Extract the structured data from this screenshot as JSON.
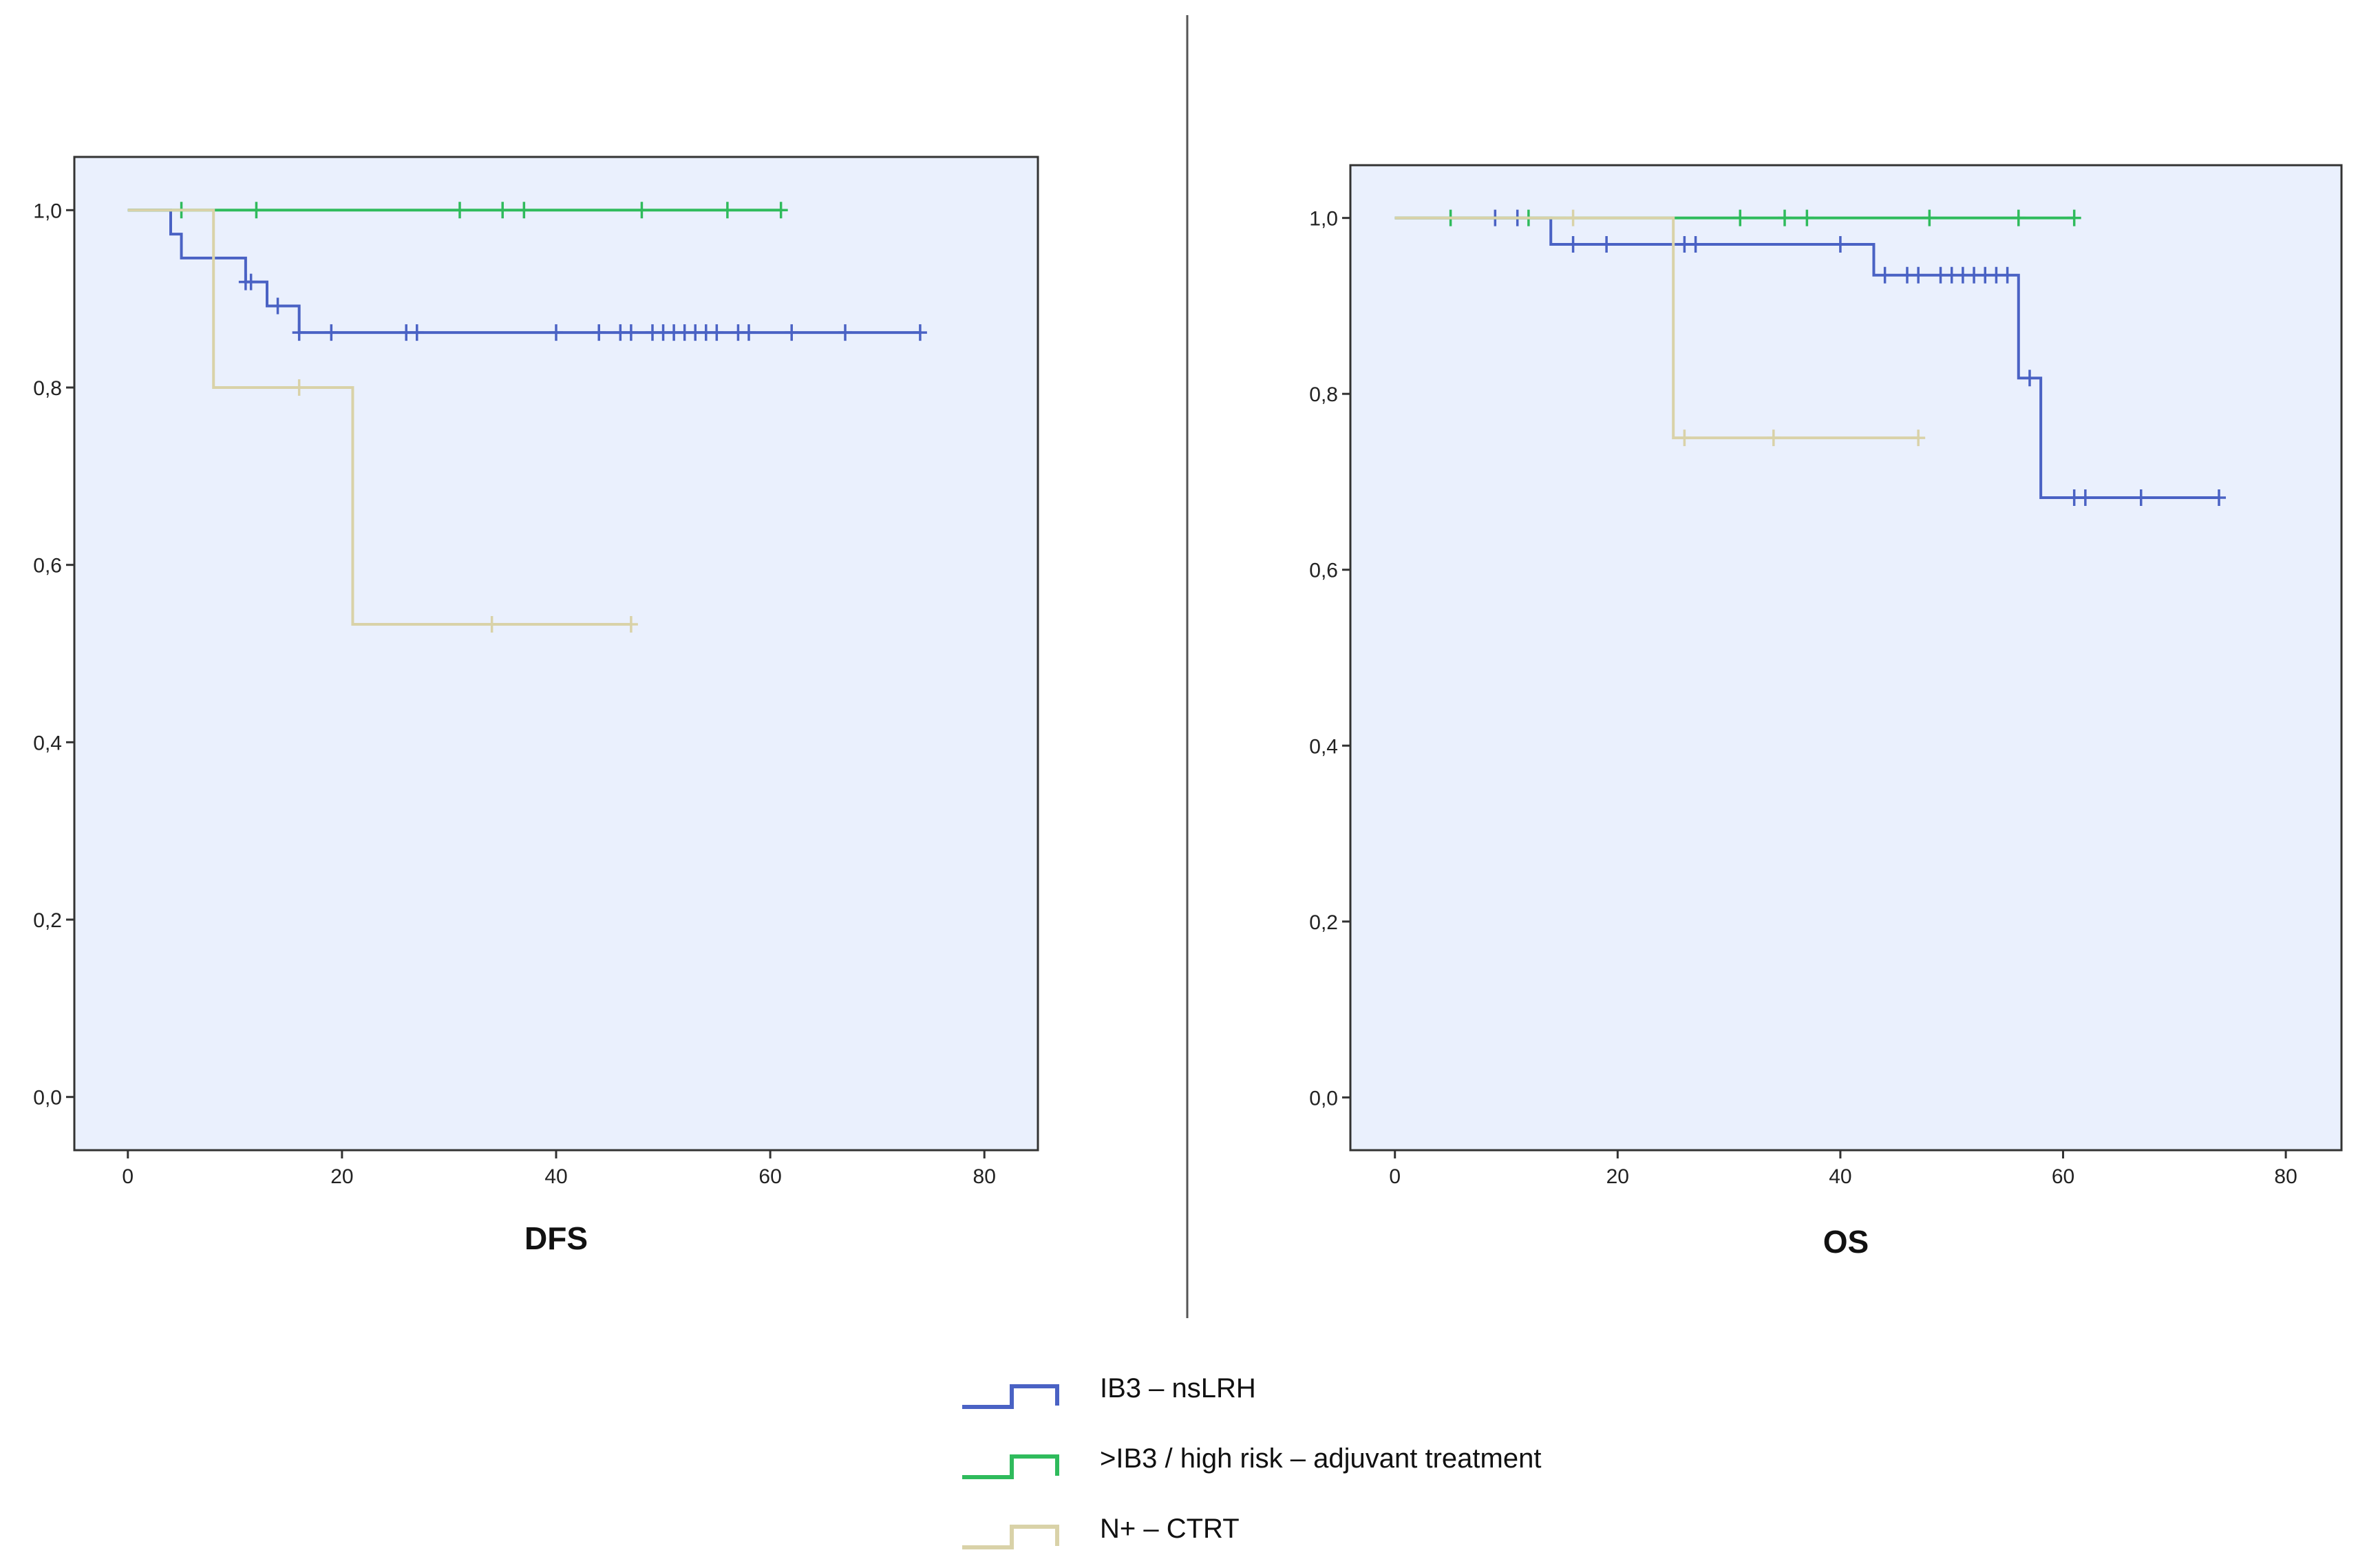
{
  "chart_data": [
    {
      "type": "line",
      "step": "km-survival",
      "title": "DFS",
      "xlabel": "",
      "ylabel": "",
      "xlim": [
        -5,
        85
      ],
      "ylim": [
        -0.06,
        1.06
      ],
      "xticks": [
        0,
        20,
        40,
        60,
        80
      ],
      "xtick_labels": [
        "0",
        "20",
        "40",
        "60",
        "80"
      ],
      "yticks": [
        0,
        0.2,
        0.4,
        0.6,
        0.8,
        1.0
      ],
      "ytick_labels": [
        "0,0",
        "0,2",
        "0,4",
        "0,6",
        "0,8",
        "1,0"
      ],
      "grid": false,
      "series": [
        {
          "key": "ib3",
          "color": "#4a62c4",
          "steps": [
            [
              0,
              1.0
            ],
            [
              4,
              0.973
            ],
            [
              5,
              0.946
            ],
            [
              11,
              0.919
            ],
            [
              13,
              0.892
            ],
            [
              16,
              0.862
            ],
            [
              74,
              0.862
            ]
          ],
          "censored": [
            [
              11,
              0.919
            ],
            [
              11.5,
              0.919
            ],
            [
              14,
              0.892
            ],
            [
              16,
              0.862
            ],
            [
              19,
              0.862
            ],
            [
              26,
              0.862
            ],
            [
              27,
              0.862
            ],
            [
              40,
              0.862
            ],
            [
              44,
              0.862
            ],
            [
              46,
              0.862
            ],
            [
              47,
              0.862
            ],
            [
              49,
              0.862
            ],
            [
              50,
              0.862
            ],
            [
              51,
              0.862
            ],
            [
              52,
              0.862
            ],
            [
              53,
              0.862
            ],
            [
              54,
              0.862
            ],
            [
              55,
              0.862
            ],
            [
              57,
              0.862
            ],
            [
              58,
              0.862
            ],
            [
              62,
              0.862
            ],
            [
              67,
              0.862
            ],
            [
              74,
              0.862
            ]
          ]
        },
        {
          "key": "adj",
          "color": "#2fbb5c",
          "steps": [
            [
              0,
              1.0
            ],
            [
              61,
              1.0
            ]
          ],
          "censored": [
            [
              5,
              1.0
            ],
            [
              12,
              1.0
            ],
            [
              31,
              1.0
            ],
            [
              35,
              1.0
            ],
            [
              37,
              1.0
            ],
            [
              48,
              1.0
            ],
            [
              56,
              1.0
            ],
            [
              61,
              1.0
            ]
          ]
        },
        {
          "key": "ctrt",
          "color": "#d9d2a8",
          "steps": [
            [
              0,
              1.0
            ],
            [
              8,
              0.8
            ],
            [
              21,
              0.533
            ],
            [
              47,
              0.533
            ]
          ],
          "censored": [
            [
              16,
              0.8
            ],
            [
              34,
              0.533
            ],
            [
              47,
              0.533
            ]
          ]
        }
      ]
    },
    {
      "type": "line",
      "step": "km-survival",
      "title": "OS",
      "xlabel": "",
      "ylabel": "",
      "xlim": [
        -4,
        85
      ],
      "ylim": [
        -0.06,
        1.06
      ],
      "xticks": [
        0,
        20,
        40,
        60,
        80
      ],
      "xtick_labels": [
        "0",
        "20",
        "40",
        "60",
        "80"
      ],
      "yticks": [
        0,
        0.2,
        0.4,
        0.6,
        0.8,
        1.0
      ],
      "ytick_labels": [
        "0,0",
        "0,2",
        "0,4",
        "0,6",
        "0,8",
        "1,0"
      ],
      "grid": false,
      "series": [
        {
          "key": "ib3",
          "color": "#4a62c4",
          "steps": [
            [
              0,
              1.0
            ],
            [
              14,
              0.97
            ],
            [
              43,
              0.935
            ],
            [
              56,
              0.818
            ],
            [
              58,
              0.682
            ],
            [
              74,
              0.682
            ]
          ],
          "censored": [
            [
              9,
              1.0
            ],
            [
              11,
              1.0
            ],
            [
              16,
              0.97
            ],
            [
              19,
              0.97
            ],
            [
              26,
              0.97
            ],
            [
              27,
              0.97
            ],
            [
              40,
              0.97
            ],
            [
              44,
              0.935
            ],
            [
              46,
              0.935
            ],
            [
              47,
              0.935
            ],
            [
              49,
              0.935
            ],
            [
              50,
              0.935
            ],
            [
              51,
              0.935
            ],
            [
              52,
              0.935
            ],
            [
              53,
              0.935
            ],
            [
              54,
              0.935
            ],
            [
              55,
              0.935
            ],
            [
              57,
              0.818
            ],
            [
              61,
              0.682
            ],
            [
              62,
              0.682
            ],
            [
              67,
              0.682
            ],
            [
              74,
              0.682
            ]
          ]
        },
        {
          "key": "adj",
          "color": "#2fbb5c",
          "steps": [
            [
              0,
              1.0
            ],
            [
              61,
              1.0
            ]
          ],
          "censored": [
            [
              5,
              1.0
            ],
            [
              12,
              1.0
            ],
            [
              31,
              1.0
            ],
            [
              35,
              1.0
            ],
            [
              37,
              1.0
            ],
            [
              48,
              1.0
            ],
            [
              56,
              1.0
            ],
            [
              61,
              1.0
            ]
          ]
        },
        {
          "key": "ctrt",
          "color": "#d9d2a8",
          "steps": [
            [
              0,
              1.0
            ],
            [
              25,
              0.75
            ],
            [
              47,
              0.75
            ]
          ],
          "censored": [
            [
              16,
              1.0
            ],
            [
              26,
              0.75
            ],
            [
              34,
              0.75
            ],
            [
              47,
              0.75
            ]
          ]
        }
      ]
    }
  ],
  "legend": {
    "position": "bottom-center",
    "items": [
      {
        "label": "IB3 – nsLRH",
        "color": "#4a62c4"
      },
      {
        "label": ">IB3 / high risk – adjuvant treatment",
        "color": "#2fbb5c"
      },
      {
        "label": "N+ – CTRT",
        "color": "#d9d2a8"
      }
    ]
  },
  "style": {
    "panel_background": "#eaf0fd",
    "axis_color": "#333333",
    "divider_color": "#555555"
  }
}
